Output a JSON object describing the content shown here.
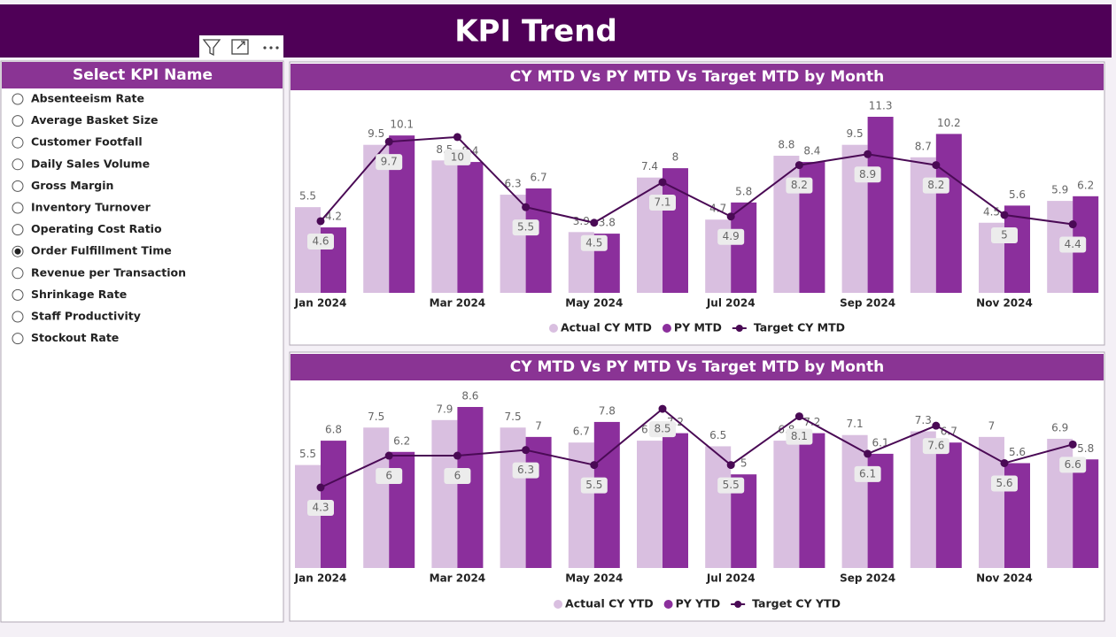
{
  "header": {
    "title": "KPI Trend"
  },
  "slicer": {
    "title": "Select KPI Name",
    "items": [
      "Absenteeism Rate",
      "Average Basket Size",
      "Customer Footfall",
      "Daily Sales Volume",
      "Gross Margin",
      "Inventory Turnover",
      "Operating Cost Ratio",
      "Order Fulfillment Time",
      "Revenue per Transaction",
      "Shrinkage Rate",
      "Staff Productivity",
      "Stockout Rate"
    ],
    "selected": 7
  },
  "chart_data": [
    {
      "type": "combo",
      "title": "CY MTD Vs PY MTD Vs Target MTD by Month",
      "categories": [
        "Jan 2024",
        null,
        "Mar 2024",
        null,
        "May 2024",
        null,
        "Jul 2024",
        null,
        "Sep 2024",
        null,
        "Nov 2024",
        null
      ],
      "series": [
        {
          "name": "Actual CY MTD",
          "type": "bar",
          "color": "#d9bfe0",
          "values": [
            5.5,
            9.5,
            8.5,
            6.3,
            3.9,
            7.4,
            4.7,
            8.8,
            9.5,
            8.7,
            4.5,
            5.9
          ]
        },
        {
          "name": "PY MTD",
          "type": "bar",
          "color": "#8b2f9c",
          "values": [
            4.2,
            10.1,
            8.4,
            6.7,
            3.8,
            8.0,
            5.8,
            8.4,
            11.3,
            10.2,
            5.6,
            6.2
          ]
        },
        {
          "name": "Target CY MTD",
          "type": "line",
          "color": "#4a0a55",
          "values": [
            4.6,
            9.7,
            10.0,
            5.5,
            4.5,
            7.1,
            4.9,
            8.2,
            8.9,
            8.2,
            5.0,
            4.4
          ]
        }
      ]
    },
    {
      "type": "combo",
      "title": "CY MTD Vs PY MTD Vs Target MTD by Month",
      "categories": [
        "Jan 2024",
        null,
        "Mar 2024",
        null,
        "May 2024",
        null,
        "Jul 2024",
        null,
        "Sep 2024",
        null,
        "Nov 2024",
        null
      ],
      "series": [
        {
          "name": "Actual CY YTD",
          "type": "bar",
          "color": "#d9bfe0",
          "values": [
            5.5,
            7.5,
            7.9,
            7.5,
            6.7,
            6.8,
            6.5,
            6.8,
            7.1,
            7.3,
            7.0,
            6.9
          ]
        },
        {
          "name": "PY YTD",
          "type": "bar",
          "color": "#8b2f9c",
          "values": [
            6.8,
            6.2,
            8.6,
            7.0,
            7.8,
            7.2,
            5.0,
            7.2,
            6.1,
            6.7,
            5.6,
            5.8
          ]
        },
        {
          "name": "Target CY YTD",
          "type": "line",
          "color": "#4a0a55",
          "values": [
            4.3,
            6.0,
            6.0,
            6.3,
            5.5,
            8.5,
            5.5,
            8.1,
            6.1,
            7.6,
            5.6,
            6.6
          ]
        }
      ]
    }
  ]
}
